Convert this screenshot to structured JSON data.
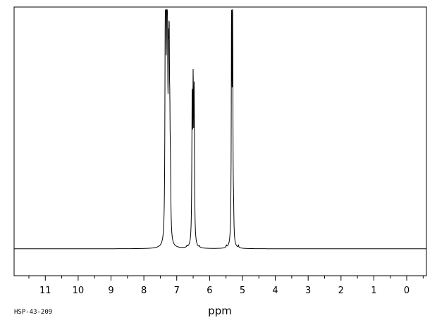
{
  "sample_id": "HSP-43-209",
  "chart_data": {
    "type": "line",
    "title": "",
    "xlabel": "ppm",
    "ylabel": "",
    "x_reversed": true,
    "xlim": [
      11.95,
      -0.6
    ],
    "ylim": [
      0,
      1
    ],
    "grid": false,
    "tick_labels": [
      "11",
      "10",
      "9",
      "8",
      "7",
      "6",
      "5",
      "4",
      "3",
      "2",
      "1",
      "0"
    ],
    "tick_values": [
      11,
      10,
      9,
      8,
      7,
      6,
      5,
      4,
      3,
      2,
      1,
      0
    ],
    "minor_tick_step": 0.5,
    "baseline": 0.1,
    "peaks": [
      {
        "ppm": 7.35,
        "height": 0.68,
        "width": 0.012
      },
      {
        "ppm": 7.33,
        "height": 0.58,
        "width": 0.012
      },
      {
        "ppm": 7.3,
        "height": 0.9,
        "width": 0.012
      },
      {
        "ppm": 7.28,
        "height": 0.45,
        "width": 0.012
      },
      {
        "ppm": 7.25,
        "height": 0.5,
        "width": 0.012
      },
      {
        "ppm": 7.23,
        "height": 0.57,
        "width": 0.012
      },
      {
        "ppm": 7.21,
        "height": 0.3,
        "width": 0.012
      },
      {
        "ppm": 7.19,
        "height": 0.18,
        "width": 0.012
      },
      {
        "ppm": 6.69,
        "height": 0.005,
        "width": 0.01
      },
      {
        "ppm": 6.53,
        "height": 0.51,
        "width": 0.012
      },
      {
        "ppm": 6.5,
        "height": 0.53,
        "width": 0.012
      },
      {
        "ppm": 6.47,
        "height": 0.53,
        "width": 0.012
      },
      {
        "ppm": 6.31,
        "height": 0.005,
        "width": 0.01
      },
      {
        "ppm": 5.49,
        "height": 0.008,
        "width": 0.01
      },
      {
        "ppm": 5.33,
        "height": 0.95,
        "width": 0.01
      },
      {
        "ppm": 5.3,
        "height": 0.98,
        "width": 0.01
      },
      {
        "ppm": 5.27,
        "height": 0.08,
        "width": 0.01
      },
      {
        "ppm": 5.12,
        "height": 0.008,
        "width": 0.01
      }
    ]
  }
}
